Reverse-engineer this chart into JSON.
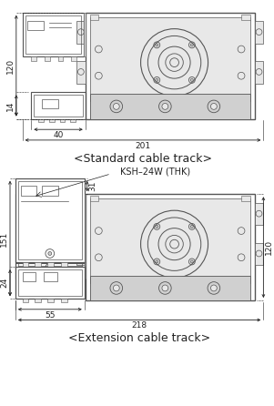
{
  "title_top": "<Standard cable track>",
  "title_bottom": "<Extension cable track>",
  "label_ksh": "KSH–24W (THK)",
  "dim_top_120": "120",
  "dim_top_14": "14",
  "dim_top_40": "40",
  "dim_top_201": "201",
  "dim_bot_151": "151",
  "dim_bot_24": "24",
  "dim_bot_55": "55",
  "dim_bot_218": "218",
  "dim_bot_31": "31",
  "dim_bot_120": "120",
  "bg_color": "#ffffff",
  "line_color": "#555555",
  "dim_color": "#222222",
  "fill_light": "#e8e8e8",
  "fill_mid": "#d0d0d0"
}
